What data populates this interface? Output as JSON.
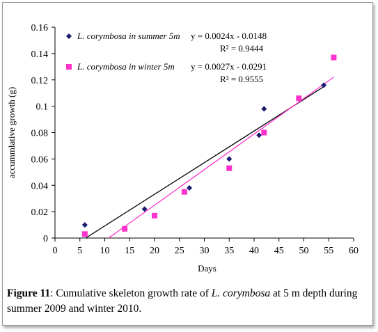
{
  "chart_data": {
    "type": "scatter",
    "xlabel": "Days",
    "ylabel": "accummlative growth (g)",
    "xlim": [
      0,
      60
    ],
    "ylim": [
      0,
      0.16
    ],
    "x_ticks": [
      "0",
      "5",
      "10",
      "15",
      "20",
      "25",
      "30",
      "35",
      "40",
      "45",
      "50",
      "55",
      "60"
    ],
    "y_ticks": [
      "0",
      "0.02",
      "0.04",
      "0.06",
      "0.08",
      "0.1",
      "0.12",
      "0.14",
      "0.16"
    ],
    "grid": false,
    "legend_position": "top-left",
    "series": [
      {
        "name": "L. corymbosa in summer 5m",
        "marker": "diamond",
        "color": "#1a1a6e",
        "trend_color": "#000000",
        "equation": "y = 0.0024x - 0.0148",
        "r2": "R² = 0.9444",
        "slope": 0.0024,
        "intercept": -0.0148,
        "trend_x": [
          6.2,
          54
        ],
        "points": [
          {
            "x": 6,
            "y": 0.01
          },
          {
            "x": 18,
            "y": 0.022
          },
          {
            "x": 27,
            "y": 0.038
          },
          {
            "x": 35,
            "y": 0.06
          },
          {
            "x": 41,
            "y": 0.078
          },
          {
            "x": 42,
            "y": 0.098
          },
          {
            "x": 54,
            "y": 0.116
          }
        ]
      },
      {
        "name": "L. corymbosa in winter 5m",
        "marker": "square",
        "color": "#ff33cc",
        "trend_color": "#ff33cc",
        "equation": "y = 0.0027x - 0.0291",
        "r2": "R² = 0.9555",
        "slope": 0.0027,
        "intercept": -0.0291,
        "trend_x": [
          10.8,
          56
        ],
        "points": [
          {
            "x": 6,
            "y": 0.003
          },
          {
            "x": 14,
            "y": 0.007
          },
          {
            "x": 20,
            "y": 0.017
          },
          {
            "x": 26,
            "y": 0.035
          },
          {
            "x": 35,
            "y": 0.053
          },
          {
            "x": 42,
            "y": 0.08
          },
          {
            "x": 49,
            "y": 0.106
          },
          {
            "x": 56,
            "y": 0.137
          }
        ]
      }
    ]
  },
  "caption": {
    "label": "Figure 11",
    "text_1": ": Cumulative skeleton growth rate of ",
    "species": "L. corymbosa",
    "text_2": " at 5 m depth during summer 2009 and winter 2010."
  }
}
